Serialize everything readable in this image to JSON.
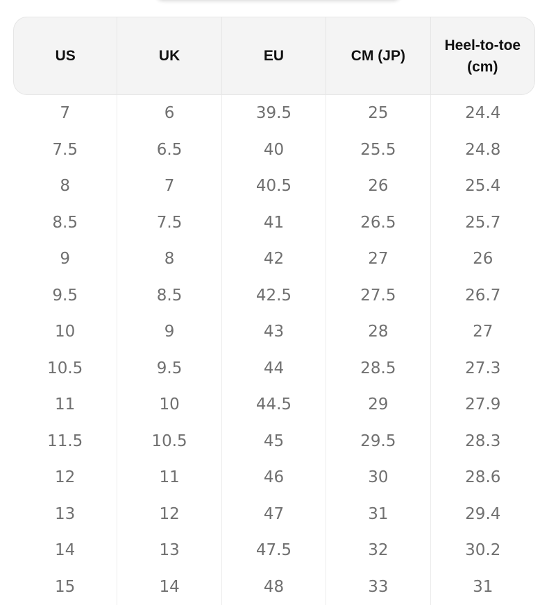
{
  "size_chart": {
    "columns": [
      "US",
      "UK",
      "EU",
      "CM (JP)",
      "Heel-to-toe (cm)"
    ],
    "rows": [
      [
        "7",
        "6",
        "39.5",
        "25",
        "24.4"
      ],
      [
        "7.5",
        "6.5",
        "40",
        "25.5",
        "24.8"
      ],
      [
        "8",
        "7",
        "40.5",
        "26",
        "25.4"
      ],
      [
        "8.5",
        "7.5",
        "41",
        "26.5",
        "25.7"
      ],
      [
        "9",
        "8",
        "42",
        "27",
        "26"
      ],
      [
        "9.5",
        "8.5",
        "42.5",
        "27.5",
        "26.7"
      ],
      [
        "10",
        "9",
        "43",
        "28",
        "27"
      ],
      [
        "10.5",
        "9.5",
        "44",
        "28.5",
        "27.3"
      ],
      [
        "11",
        "10",
        "44.5",
        "29",
        "27.9"
      ],
      [
        "11.5",
        "10.5",
        "45",
        "29.5",
        "28.3"
      ],
      [
        "12",
        "11",
        "46",
        "30",
        "28.6"
      ],
      [
        "13",
        "12",
        "47",
        "31",
        "29.4"
      ],
      [
        "14",
        "13",
        "47.5",
        "32",
        "30.2"
      ],
      [
        "15",
        "14",
        "48",
        "33",
        "31"
      ]
    ]
  },
  "colors": {
    "header_background": "#f4f4f4",
    "header_text": "#111111",
    "cell_text": "#707070",
    "divider": "#ececec"
  }
}
